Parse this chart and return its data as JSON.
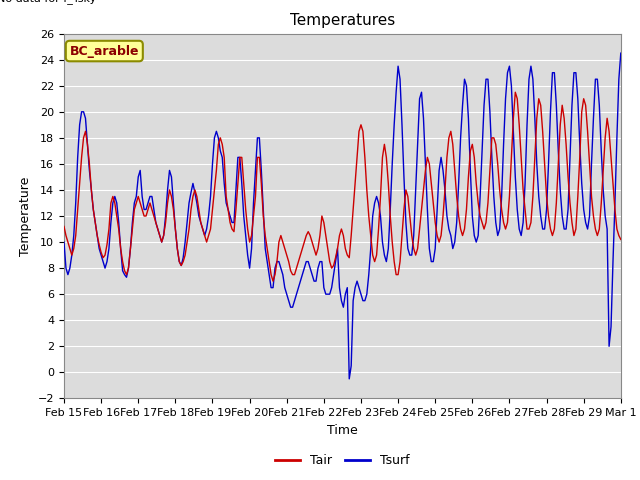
{
  "title": "Temperatures",
  "box_label": "BC_arable",
  "xlabel": "Time",
  "ylabel": "Temperature",
  "ylim": [
    -2,
    26
  ],
  "yticks": [
    -2,
    0,
    2,
    4,
    6,
    8,
    10,
    12,
    14,
    16,
    18,
    20,
    22,
    24,
    26
  ],
  "bg_color": "#dcdcdc",
  "fig_color": "#ffffff",
  "tair_color": "#cc0000",
  "tsurf_color": "#0000cc",
  "grid_color": "#ffffff",
  "title_fontsize": 11,
  "axis_label_fontsize": 9,
  "tick_fontsize": 8,
  "x_tick_labels": [
    "Feb 15",
    "Feb 16",
    "Feb 17",
    "Feb 18",
    "Feb 19",
    "Feb 20",
    "Feb 21",
    "Feb 22",
    "Feb 23",
    "Feb 24",
    "Feb 25",
    "Feb 26",
    "Feb 27",
    "Feb 28",
    "Feb 29",
    "Mar 1"
  ],
  "tair_data": [
    11.2,
    10.5,
    10.0,
    9.5,
    9.0,
    9.5,
    10.5,
    12.5,
    14.5,
    16.5,
    18.0,
    18.5,
    17.5,
    16.0,
    14.0,
    12.5,
    11.5,
    10.5,
    9.8,
    9.2,
    8.8,
    9.0,
    9.8,
    11.0,
    13.0,
    13.5,
    13.0,
    12.0,
    11.0,
    9.5,
    8.5,
    7.8,
    7.5,
    8.0,
    9.5,
    11.0,
    12.5,
    13.0,
    13.5,
    13.0,
    12.5,
    12.0,
    12.0,
    12.5,
    13.0,
    12.5,
    12.0,
    11.5,
    11.0,
    10.5,
    10.0,
    10.5,
    11.5,
    13.0,
    14.0,
    13.5,
    12.5,
    11.0,
    9.5,
    8.5,
    8.2,
    8.5,
    9.0,
    10.0,
    11.0,
    12.5,
    13.5,
    14.0,
    13.5,
    12.5,
    11.5,
    11.0,
    10.5,
    10.0,
    10.5,
    11.0,
    12.5,
    14.0,
    15.5,
    17.5,
    18.0,
    17.5,
    16.5,
    13.5,
    12.5,
    11.5,
    11.0,
    10.8,
    12.5,
    14.5,
    16.5,
    16.5,
    14.5,
    12.5,
    11.0,
    10.0,
    10.5,
    12.0,
    13.5,
    16.5,
    16.5,
    14.5,
    12.0,
    10.5,
    9.5,
    8.5,
    7.5,
    7.0,
    7.5,
    8.5,
    10.0,
    10.5,
    10.0,
    9.5,
    9.0,
    8.5,
    7.8,
    7.5,
    7.5,
    8.0,
    8.5,
    9.0,
    9.5,
    10.0,
    10.5,
    10.8,
    10.5,
    10.0,
    9.5,
    9.0,
    9.5,
    10.5,
    12.0,
    11.5,
    10.5,
    9.5,
    8.5,
    8.0,
    8.2,
    8.8,
    9.5,
    10.5,
    11.0,
    10.5,
    9.5,
    9.0,
    8.8,
    10.5,
    12.5,
    14.5,
    16.5,
    18.5,
    19.0,
    18.5,
    16.5,
    14.0,
    12.0,
    10.5,
    9.0,
    8.5,
    9.0,
    11.0,
    13.5,
    16.5,
    17.5,
    16.5,
    14.5,
    12.0,
    10.0,
    8.5,
    7.5,
    7.5,
    8.5,
    10.5,
    12.5,
    14.0,
    13.5,
    12.0,
    10.5,
    9.5,
    9.0,
    9.5,
    11.0,
    12.5,
    14.0,
    15.5,
    16.5,
    16.0,
    14.5,
    13.0,
    11.5,
    10.5,
    10.0,
    10.5,
    12.0,
    14.0,
    16.5,
    18.0,
    18.5,
    17.5,
    15.5,
    13.5,
    12.0,
    11.0,
    10.5,
    11.0,
    12.5,
    15.0,
    17.0,
    17.5,
    16.5,
    14.5,
    13.0,
    12.0,
    11.5,
    11.0,
    11.5,
    13.0,
    15.5,
    18.0,
    18.0,
    17.5,
    16.0,
    14.0,
    12.5,
    11.5,
    11.0,
    11.5,
    13.5,
    16.5,
    19.5,
    21.5,
    21.0,
    19.0,
    16.5,
    14.0,
    12.5,
    11.0,
    11.0,
    11.5,
    13.5,
    16.5,
    19.5,
    21.0,
    20.5,
    18.5,
    16.0,
    13.5,
    12.0,
    11.0,
    10.5,
    11.0,
    13.0,
    16.0,
    19.0,
    20.5,
    19.5,
    17.5,
    15.0,
    13.0,
    11.5,
    10.5,
    11.0,
    13.5,
    16.5,
    20.0,
    21.0,
    20.5,
    18.5,
    16.0,
    13.5,
    12.0,
    11.0,
    10.5,
    11.0,
    13.0,
    15.5,
    18.0,
    19.5,
    18.5,
    16.5,
    14.5,
    12.5,
    11.0,
    10.5,
    10.2
  ],
  "tsurf_data": [
    10.0,
    8.0,
    7.5,
    8.0,
    9.0,
    10.5,
    13.0,
    16.5,
    19.0,
    20.0,
    20.0,
    19.5,
    17.5,
    15.5,
    14.0,
    12.5,
    11.5,
    10.5,
    9.5,
    9.0,
    8.5,
    8.0,
    8.5,
    9.5,
    11.5,
    13.0,
    13.5,
    13.0,
    11.5,
    9.5,
    7.8,
    7.5,
    7.3,
    8.0,
    9.5,
    11.5,
    13.0,
    13.5,
    15.0,
    15.5,
    13.5,
    12.5,
    12.5,
    13.0,
    13.5,
    13.5,
    12.5,
    11.5,
    11.0,
    10.5,
    10.0,
    10.5,
    12.0,
    14.0,
    15.5,
    15.0,
    13.0,
    11.0,
    9.5,
    8.5,
    8.2,
    8.8,
    10.0,
    11.5,
    13.0,
    13.8,
    14.5,
    13.8,
    13.0,
    12.0,
    11.5,
    11.0,
    10.5,
    11.0,
    12.0,
    13.5,
    16.0,
    18.0,
    18.5,
    18.0,
    17.0,
    16.5,
    14.5,
    13.0,
    12.5,
    12.0,
    11.5,
    11.5,
    14.0,
    16.5,
    16.5,
    14.5,
    12.0,
    10.5,
    9.0,
    8.0,
    9.5,
    13.0,
    15.5,
    18.0,
    18.0,
    15.5,
    12.5,
    9.5,
    8.5,
    7.5,
    6.5,
    6.5,
    8.0,
    8.5,
    8.5,
    8.0,
    7.5,
    6.5,
    6.0,
    5.5,
    5.0,
    5.0,
    5.5,
    6.0,
    6.5,
    7.0,
    7.5,
    8.0,
    8.5,
    8.5,
    8.0,
    7.5,
    7.0,
    7.0,
    8.0,
    8.5,
    8.5,
    6.5,
    6.0,
    6.0,
    6.0,
    6.5,
    7.5,
    8.5,
    9.5,
    6.5,
    5.5,
    5.0,
    6.0,
    6.5,
    -0.5,
    0.5,
    5.5,
    6.5,
    7.0,
    6.5,
    6.0,
    5.5,
    5.5,
    6.0,
    7.5,
    9.5,
    12.0,
    13.0,
    13.5,
    13.0,
    12.0,
    10.0,
    9.0,
    8.5,
    9.5,
    12.5,
    16.0,
    19.0,
    21.5,
    23.5,
    22.5,
    19.0,
    15.0,
    11.5,
    9.5,
    9.0,
    9.0,
    10.5,
    14.0,
    17.5,
    21.0,
    21.5,
    19.5,
    16.0,
    12.5,
    9.5,
    8.5,
    8.5,
    9.5,
    12.5,
    15.5,
    16.5,
    15.5,
    14.0,
    12.0,
    11.0,
    10.5,
    9.5,
    10.0,
    11.5,
    14.5,
    18.0,
    20.5,
    22.5,
    22.0,
    19.5,
    15.5,
    12.0,
    10.5,
    10.0,
    10.5,
    13.5,
    17.0,
    20.5,
    22.5,
    22.5,
    20.0,
    16.5,
    13.5,
    11.5,
    10.5,
    11.0,
    13.5,
    17.5,
    21.0,
    23.0,
    23.5,
    22.0,
    18.5,
    15.0,
    12.5,
    11.0,
    10.5,
    11.5,
    14.5,
    19.0,
    22.5,
    23.5,
    22.5,
    19.5,
    16.0,
    13.5,
    12.0,
    11.0,
    11.0,
    12.5,
    16.0,
    20.0,
    23.0,
    23.0,
    20.5,
    17.0,
    14.0,
    12.0,
    11.0,
    11.0,
    12.5,
    16.5,
    20.5,
    23.0,
    23.0,
    21.0,
    17.5,
    14.5,
    12.5,
    11.5,
    11.0,
    12.0,
    16.0,
    19.5,
    22.5,
    22.5,
    20.5,
    17.0,
    14.0,
    12.0,
    11.0,
    2.0,
    3.5,
    8.5,
    13.0,
    18.0,
    22.5,
    24.5,
    24.5,
    21.0,
    17.5,
    14.5,
    12.5,
    11.5,
    12.0,
    11.5
  ]
}
